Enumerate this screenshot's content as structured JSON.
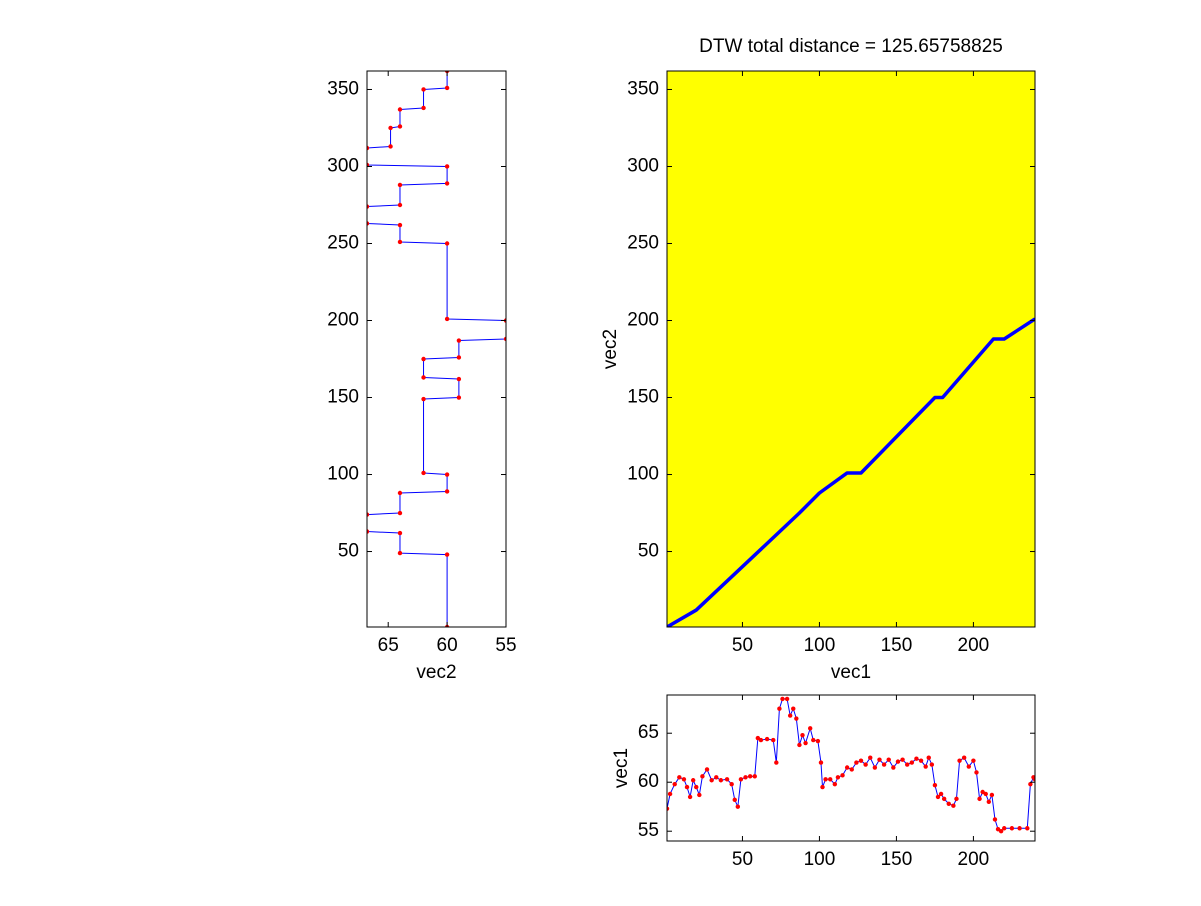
{
  "chart_data": [
    {
      "type": "line",
      "xlabel": "vec2",
      "xlim": [
        66.8,
        55
      ],
      "xticks": [
        65,
        60,
        55
      ],
      "ylim": [
        1,
        362
      ],
      "yticks": [
        50,
        100,
        150,
        200,
        250,
        300,
        350
      ],
      "color": "#0000ff",
      "marker_color": "#ff0000",
      "y": [
        1,
        48,
        49,
        62,
        63,
        74,
        75,
        88,
        89,
        100,
        101,
        149,
        150,
        162,
        163,
        175,
        176,
        187,
        188,
        200,
        201,
        250,
        251,
        262,
        263,
        274,
        275,
        288,
        289,
        300,
        301,
        312,
        313,
        325,
        326,
        337,
        338,
        350,
        351,
        362
      ],
      "x": [
        60,
        60,
        64,
        64,
        66.8,
        66.8,
        64,
        64,
        60,
        60,
        62,
        62,
        59,
        59,
        62,
        62,
        59,
        59,
        55,
        55,
        60,
        60,
        64,
        64,
        66.8,
        66.8,
        64,
        64,
        60,
        60,
        66.8,
        66.8,
        64.8,
        64.8,
        64,
        64,
        62,
        62,
        60,
        60
      ]
    },
    {
      "type": "line",
      "title": "DTW total distance = 125.65758825",
      "xlabel": "vec1",
      "ylabel": "vec2",
      "xlim": [
        1,
        240
      ],
      "xticks": [
        50,
        100,
        150,
        200
      ],
      "ylim": [
        1,
        362
      ],
      "yticks": [
        50,
        100,
        150,
        200,
        250,
        300,
        350
      ],
      "image_color": "#ffff00",
      "color": "#0000ff",
      "x": [
        1,
        20,
        87,
        100,
        118,
        127,
        175,
        180,
        213,
        220,
        240
      ],
      "y": [
        1,
        12,
        75,
        88,
        101,
        101,
        150,
        150,
        188,
        188,
        201
      ]
    },
    {
      "type": "line",
      "ylabel": "vec1",
      "xlim": [
        1,
        240
      ],
      "xticks": [
        50,
        100,
        150,
        200
      ],
      "ylim": [
        54,
        68.9
      ],
      "yticks": [
        55,
        60,
        65
      ],
      "color": "#0000ff",
      "marker_color": "#ff0000",
      "x": [
        1,
        3,
        6,
        9,
        12,
        14,
        16,
        18,
        20,
        22,
        24,
        27,
        30,
        33,
        36,
        40,
        43,
        45,
        47,
        49,
        52,
        55,
        58,
        60,
        62,
        66,
        70,
        72,
        74,
        76,
        79,
        81,
        83,
        85,
        87,
        89,
        91,
        94,
        96,
        99,
        101,
        102,
        104,
        107,
        110,
        112,
        115,
        118,
        121,
        124,
        127,
        130,
        133,
        136,
        139,
        142,
        145,
        148,
        151,
        154,
        157,
        160,
        163,
        166,
        169,
        171,
        173,
        175,
        177,
        179,
        181,
        184,
        187,
        189,
        191,
        194,
        197,
        200,
        202,
        204,
        206,
        208,
        210,
        212,
        214,
        216,
        218,
        220,
        225,
        230,
        235,
        237,
        239,
        240
      ],
      "y": [
        57.3,
        58.8,
        59.8,
        60.5,
        60.3,
        59.5,
        58.5,
        60.2,
        59.5,
        58.7,
        60.6,
        61.3,
        60.2,
        60.5,
        60.2,
        60.3,
        59.8,
        58.2,
        57.5,
        60.3,
        60.5,
        60.6,
        60.6,
        64.5,
        64.3,
        64.4,
        64.3,
        62.0,
        67.5,
        68.5,
        68.5,
        66.8,
        67.5,
        66.5,
        63.8,
        64.8,
        64.0,
        65.5,
        64.3,
        64.2,
        62.0,
        59.5,
        60.3,
        60.3,
        59.8,
        60.5,
        60.7,
        61.5,
        61.3,
        62.0,
        62.2,
        61.8,
        62.5,
        61.5,
        62.3,
        61.8,
        62.3,
        61.5,
        62.1,
        62.3,
        61.8,
        62.0,
        62.4,
        62.2,
        61.6,
        62.5,
        61.8,
        59.7,
        58.5,
        58.8,
        58.3,
        57.8,
        57.6,
        58.3,
        62.2,
        62.5,
        61.6,
        62.2,
        61.0,
        58.3,
        59.0,
        58.8,
        58.0,
        58.7,
        56.2,
        55.2,
        55.0,
        55.3,
        55.3,
        55.3,
        55.3,
        59.8,
        60.5,
        60.3
      ]
    }
  ]
}
